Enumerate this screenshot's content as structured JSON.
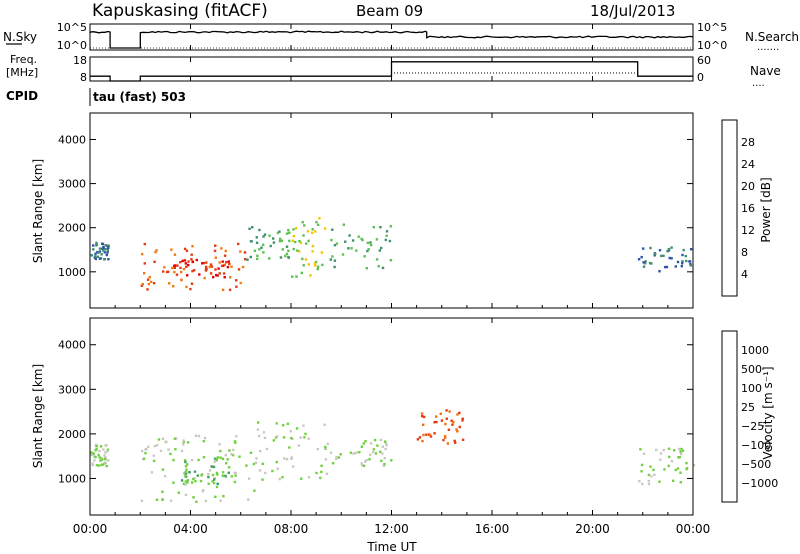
{
  "header": {
    "title": "Kapuskasing (fitACF)",
    "beam": "Beam 09",
    "date": "18/Jul/2013"
  },
  "panel_sky": {
    "left_label": "N.Sky",
    "left_ticks": [
      "10^5",
      "10^0"
    ],
    "right_ticks": [
      "10^5",
      "10^0"
    ],
    "right_label": "N.Search",
    "right_dots": "......."
  },
  "panel_freq": {
    "left_label_line1": "Freq.",
    "left_label_line2": "[MHz]",
    "left_ticks": [
      "18",
      "8"
    ],
    "right_ticks": [
      "60",
      "0"
    ],
    "right_label": "Nave",
    "right_dots": "....",
    "cpid_label": "CPID",
    "cpid_text": "tau (fast) 503"
  },
  "axes": {
    "x_ticks": [
      "00:00",
      "04:00",
      "08:00",
      "12:00",
      "16:00",
      "20:00",
      "00:00"
    ],
    "xlabel": "Time UT",
    "ylabel": "Slant Range [km]",
    "y_ticks": [
      "1000",
      "2000",
      "3000",
      "4000"
    ]
  },
  "power_scale": {
    "label": "Power [dB]",
    "ticks": [
      "4",
      "8",
      "12",
      "16",
      "20",
      "24",
      "28"
    ],
    "colors": [
      "#1b2cff",
      "#2f55a8",
      "#3f8f6a",
      "#5cc052",
      "#f5c400",
      "#f07a10",
      "#e63a12",
      "#e60000"
    ]
  },
  "velocity_scale": {
    "label": "Velocity [m s⁻¹]",
    "ticks": [
      "1000",
      "500",
      "100",
      "25",
      "−25",
      "−100",
      "−500",
      "−1000"
    ],
    "colors": [
      "#1b3aa8",
      "#2f6fa0",
      "#3f9f60",
      "#6fd040",
      "#c8c8c0",
      "#f0a020",
      "#f07010",
      "#e63a12",
      "#e60000"
    ]
  },
  "chart_data": [
    {
      "type": "line",
      "name": "N.Sky",
      "x_unit": "hours UT",
      "segments": [
        {
          "x": [
            0.0,
            0.8
          ],
          "level": "high"
        },
        {
          "x": [
            0.8,
            2.0
          ],
          "level": "low"
        },
        {
          "x": [
            2.0,
            13.4
          ],
          "level": "high"
        },
        {
          "x": [
            13.4,
            24.0
          ],
          "level": "mid-high"
        }
      ]
    },
    {
      "type": "line",
      "name": "Freq.",
      "ylim": [
        8,
        18
      ],
      "segments": [
        {
          "x": [
            0.0,
            0.8
          ],
          "y": 10
        },
        {
          "x": [
            0.8,
            2.0
          ],
          "y": 8
        },
        {
          "x": [
            2.0,
            12.0
          ],
          "y": 10
        },
        {
          "x": [
            12.0,
            21.8
          ],
          "y": 16
        },
        {
          "x": [
            21.8,
            24.0
          ],
          "y": 10
        }
      ]
    },
    {
      "type": "heatmap",
      "name": "Power",
      "xlim": [
        0,
        24
      ],
      "ylim": [
        180,
        4600
      ],
      "regions": [
        {
          "x": [
            0.0,
            0.7
          ],
          "y": [
            1300,
            1700
          ],
          "value": 8
        },
        {
          "x": [
            2.0,
            6.2
          ],
          "y": [
            600,
            1700
          ],
          "value": 24
        },
        {
          "x": [
            3.0,
            5.5
          ],
          "y": [
            900,
            1300
          ],
          "value": 28
        },
        {
          "x": [
            6.2,
            8.0
          ],
          "y": [
            1300,
            2100
          ],
          "value": 12
        },
        {
          "x": [
            8.0,
            9.4
          ],
          "y": [
            900,
            2300
          ],
          "value": 16
        },
        {
          "x": [
            9.4,
            12.0
          ],
          "y": [
            1100,
            2100
          ],
          "value": 12
        },
        {
          "x": [
            21.8,
            24.0
          ],
          "y": [
            1000,
            1600
          ],
          "value": 8
        }
      ]
    },
    {
      "type": "heatmap",
      "name": "Velocity",
      "xlim": [
        0,
        24
      ],
      "ylim": [
        180,
        4600
      ],
      "regions": [
        {
          "x": [
            0.0,
            0.7
          ],
          "y": [
            1300,
            1800
          ],
          "value": 25
        },
        {
          "x": [
            2.0,
            6.5
          ],
          "y": [
            500,
            2000
          ],
          "value": 25
        },
        {
          "x": [
            3.5,
            5.5
          ],
          "y": [
            900,
            1500
          ],
          "value": 100
        },
        {
          "x": [
            6.5,
            9.5
          ],
          "y": [
            1000,
            2300
          ],
          "value": 25
        },
        {
          "x": [
            9.5,
            12.0
          ],
          "y": [
            1300,
            1900
          ],
          "value": 25
        },
        {
          "x": [
            13.0,
            15.0
          ],
          "y": [
            1800,
            2600
          ],
          "value": -500
        },
        {
          "x": [
            21.8,
            24.0
          ],
          "y": [
            900,
            1700
          ],
          "value": 25
        }
      ]
    }
  ]
}
